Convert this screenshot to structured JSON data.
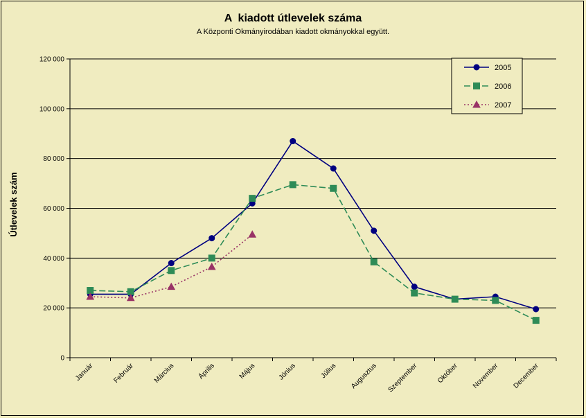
{
  "chart_data": {
    "type": "line",
    "title": "A  kiadott útlevelek száma",
    "subtitle": "A Központi Okmányirodában kiadott okmányokkal együtt.",
    "xlabel": "",
    "ylabel": "Útlevelek szám",
    "ylim": [
      0,
      120000
    ],
    "yticks": [
      0,
      20000,
      40000,
      60000,
      80000,
      100000,
      120000
    ],
    "ytick_labels": [
      "0",
      "20 000",
      "40 000",
      "60 000",
      "80 000",
      "100 000",
      "120 000"
    ],
    "grid": true,
    "legend_position": "top-right",
    "categories": [
      "Január",
      "Február",
      "Március",
      "Április",
      "Május",
      "Június",
      "Július",
      "Augusztus",
      "Szeptember",
      "Október",
      "November",
      "December"
    ],
    "series": [
      {
        "name": "2005",
        "color": "#000080",
        "marker": "circle",
        "dash": "solid",
        "values": [
          25500,
          25500,
          38000,
          48000,
          62000,
          87000,
          76000,
          51000,
          28500,
          23500,
          24500,
          19500
        ]
      },
      {
        "name": "2006",
        "color": "#2e8b57",
        "marker": "square",
        "dash": "dashed",
        "values": [
          27000,
          26500,
          35000,
          40000,
          64000,
          69500,
          68000,
          38500,
          26000,
          23500,
          23000,
          15000
        ]
      },
      {
        "name": "2007",
        "color": "#993366",
        "marker": "triangle",
        "dash": "dotted",
        "values": [
          24500,
          24000,
          28500,
          36500,
          49500,
          null,
          null,
          null,
          null,
          null,
          null,
          null
        ]
      }
    ]
  }
}
